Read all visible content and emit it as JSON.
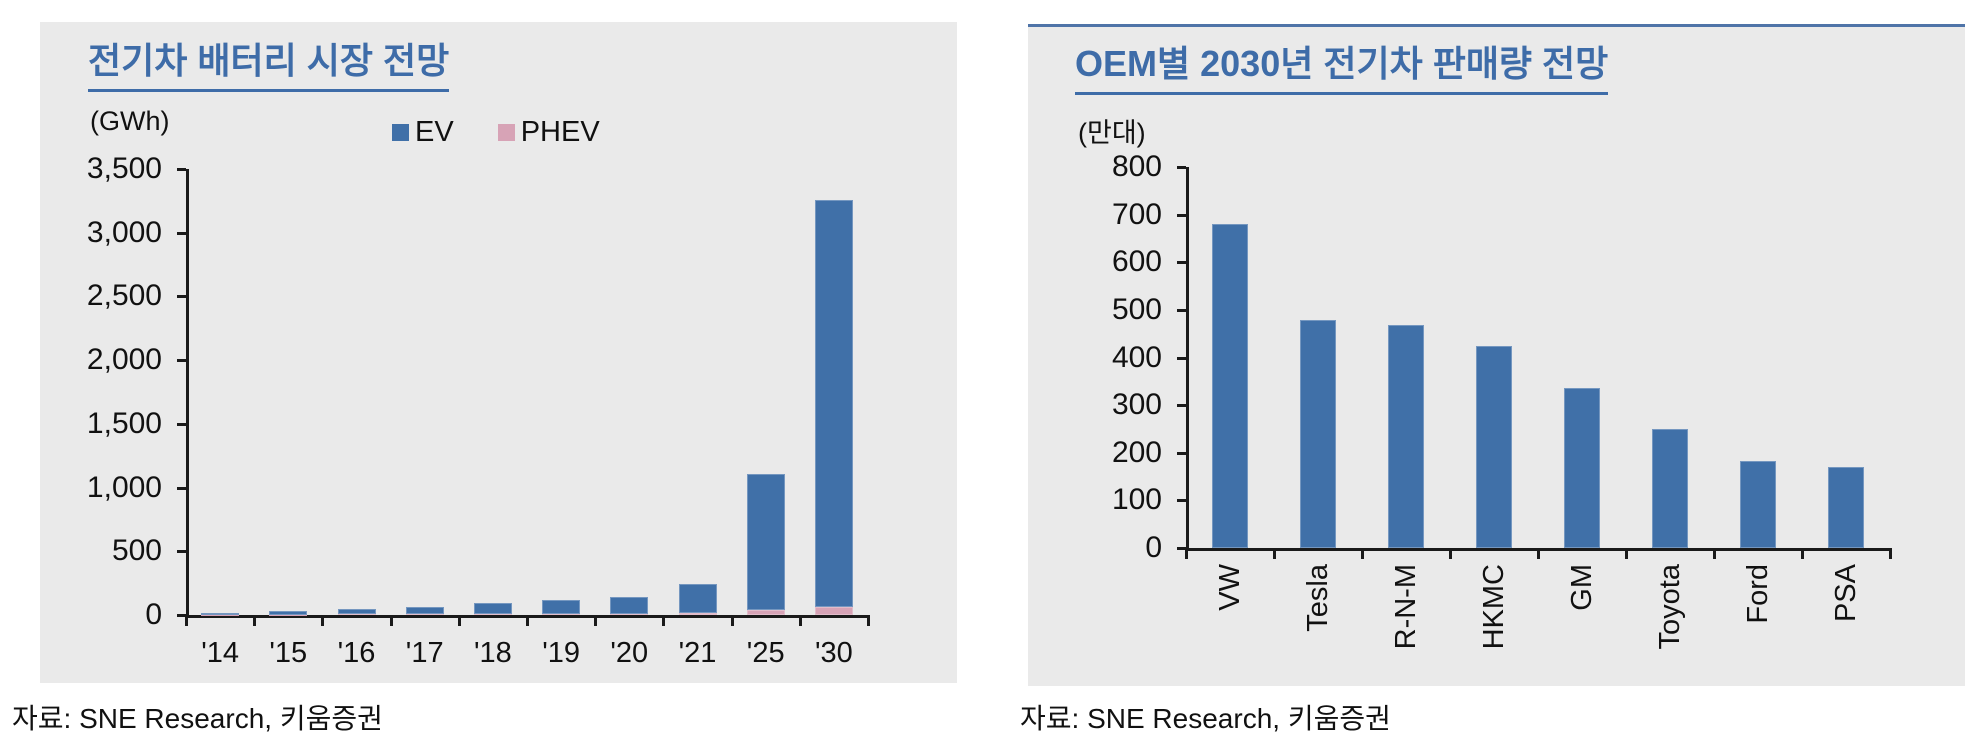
{
  "sources": {
    "left": "자료: SNE Research, 키움증권",
    "right": "자료: SNE Research, 키움증권"
  },
  "colors": {
    "ev_bar_blue": "#4070A8",
    "phev_bar_pink": "#D7A3B6",
    "title_blue": "#3E6CA8",
    "panel_background": "#EAEAEA",
    "axis_black": "#1a1a1a"
  },
  "chart_data": [
    {
      "type": "bar",
      "stacked": true,
      "title": "전기차 배터리 시장 전망",
      "unit": "(GWh)",
      "categories": [
        "'14",
        "'15",
        "'16",
        "'17",
        "'18",
        "'19",
        "'20",
        "'21",
        "'25",
        "'30"
      ],
      "series": [
        {
          "name": "EV",
          "color": "#4070A8",
          "values": [
            10,
            25,
            40,
            55,
            90,
            110,
            135,
            230,
            1070,
            3200
          ]
        },
        {
          "name": "PHEV",
          "color": "#D7A3B6",
          "values": [
            2,
            3,
            4,
            5,
            6,
            8,
            10,
            12,
            40,
            60
          ]
        }
      ],
      "ylim": [
        0,
        3500
      ],
      "ytick_step": 500,
      "grid": false,
      "legend_position": "top",
      "ytick_format": "thousands"
    },
    {
      "type": "bar",
      "stacked": false,
      "title": "OEM별 2030년 전기차 판매량 전망",
      "unit": "(만대)",
      "categories": [
        "VW",
        "Tesla",
        "R-N-M",
        "HKMC",
        "GM",
        "Toyota",
        "Ford",
        "PSA"
      ],
      "series": [
        {
          "name": "EV",
          "color": "#4070A8",
          "values": [
            680,
            478,
            468,
            425,
            335,
            250,
            182,
            170
          ]
        }
      ],
      "ylim": [
        0,
        800
      ],
      "ytick_step": 100,
      "grid": false,
      "legend_position": "none",
      "ytick_format": "plain",
      "rotate_x_labels": true
    }
  ]
}
